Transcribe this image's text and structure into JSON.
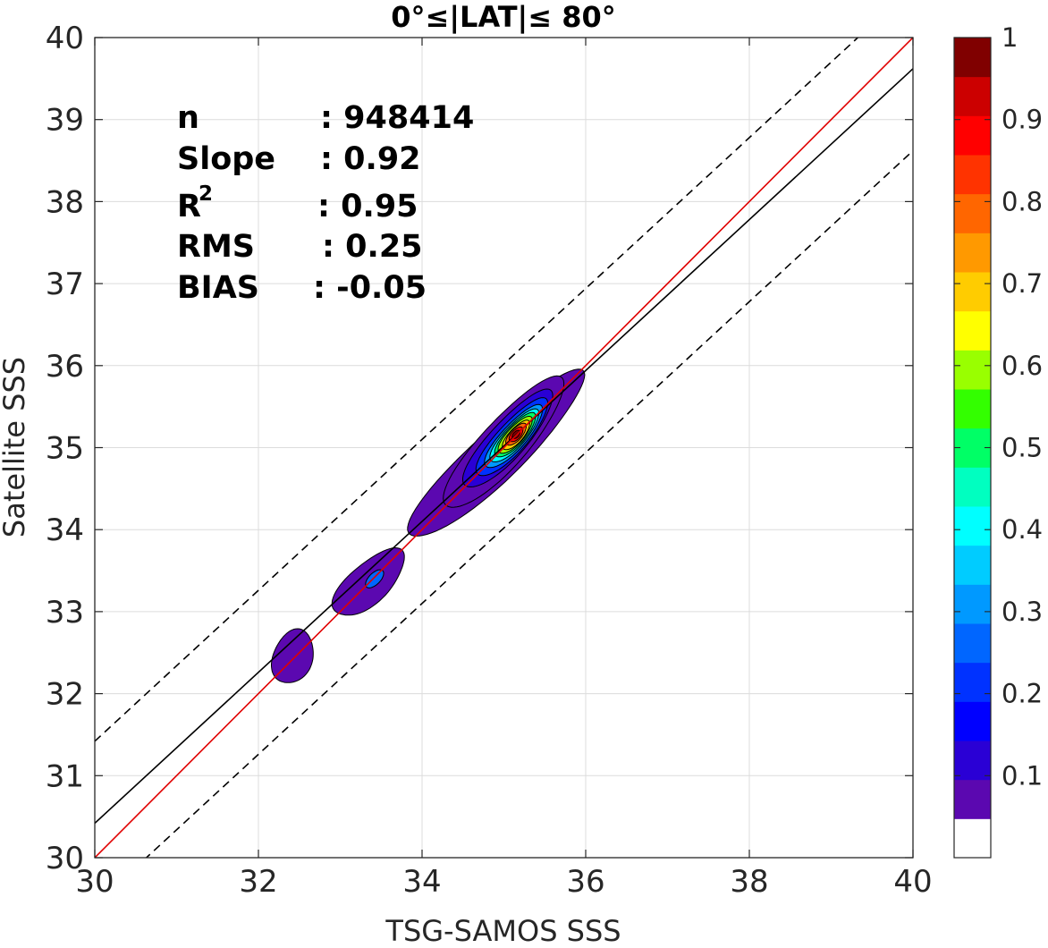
{
  "chart_data": {
    "type": "heatmap",
    "title": "0°≤|LAT|≤ 80°",
    "xlabel": "TSG-SAMOS SSS",
    "ylabel": "Satellite SSS",
    "xlim": [
      30,
      40
    ],
    "ylim": [
      30,
      40
    ],
    "x_ticks": [
      "30",
      "32",
      "34",
      "36",
      "38",
      "40"
    ],
    "y_ticks": [
      "30",
      "31",
      "32",
      "33",
      "34",
      "35",
      "36",
      "37",
      "38",
      "39",
      "40"
    ],
    "grid": true,
    "stats": {
      "n_label": "n",
      "n_value": ": 948414",
      "slope_label": "Slope",
      "slope_value": ": 0.92",
      "r2_label": "R",
      "r2_sup": "2",
      "r2_value": ": 0.95",
      "rms_label": "RMS",
      "rms_value": ": 0.25",
      "bias_label": "BIAS",
      "bias_value": ": -0.05"
    },
    "lines": {
      "one_to_one": {
        "color": "#e00000",
        "slope": 1,
        "intercept": 0
      },
      "fit": {
        "color": "#000000",
        "slope": 0.92,
        "intercept": 2.82
      },
      "envelope_offset": 1.0
    },
    "density_clusters": [
      {
        "center": [
          35.15,
          35.15
        ],
        "peak": 1.0
      },
      {
        "center": [
          33.4,
          33.4
        ],
        "peak": 0.25
      },
      {
        "center": [
          32.4,
          32.45
        ],
        "peak": 0.15
      }
    ],
    "colorbar": {
      "range": [
        0,
        1
      ],
      "ticks": [
        "0.1",
        "0.2",
        "0.3",
        "0.4",
        "0.5",
        "0.6",
        "0.7",
        "0.8",
        "0.9",
        "1"
      ],
      "colors": [
        "#ffffff",
        "#5b08b0",
        "#2a00d5",
        "#0000ff",
        "#0032ff",
        "#0066ff",
        "#0099ff",
        "#00ccff",
        "#00ffff",
        "#00ffc0",
        "#00ff66",
        "#33ff00",
        "#99ff00",
        "#ffff00",
        "#ffcc00",
        "#ff9900",
        "#ff6600",
        "#ff3300",
        "#ff0000",
        "#cc0000",
        "#800000"
      ]
    }
  }
}
